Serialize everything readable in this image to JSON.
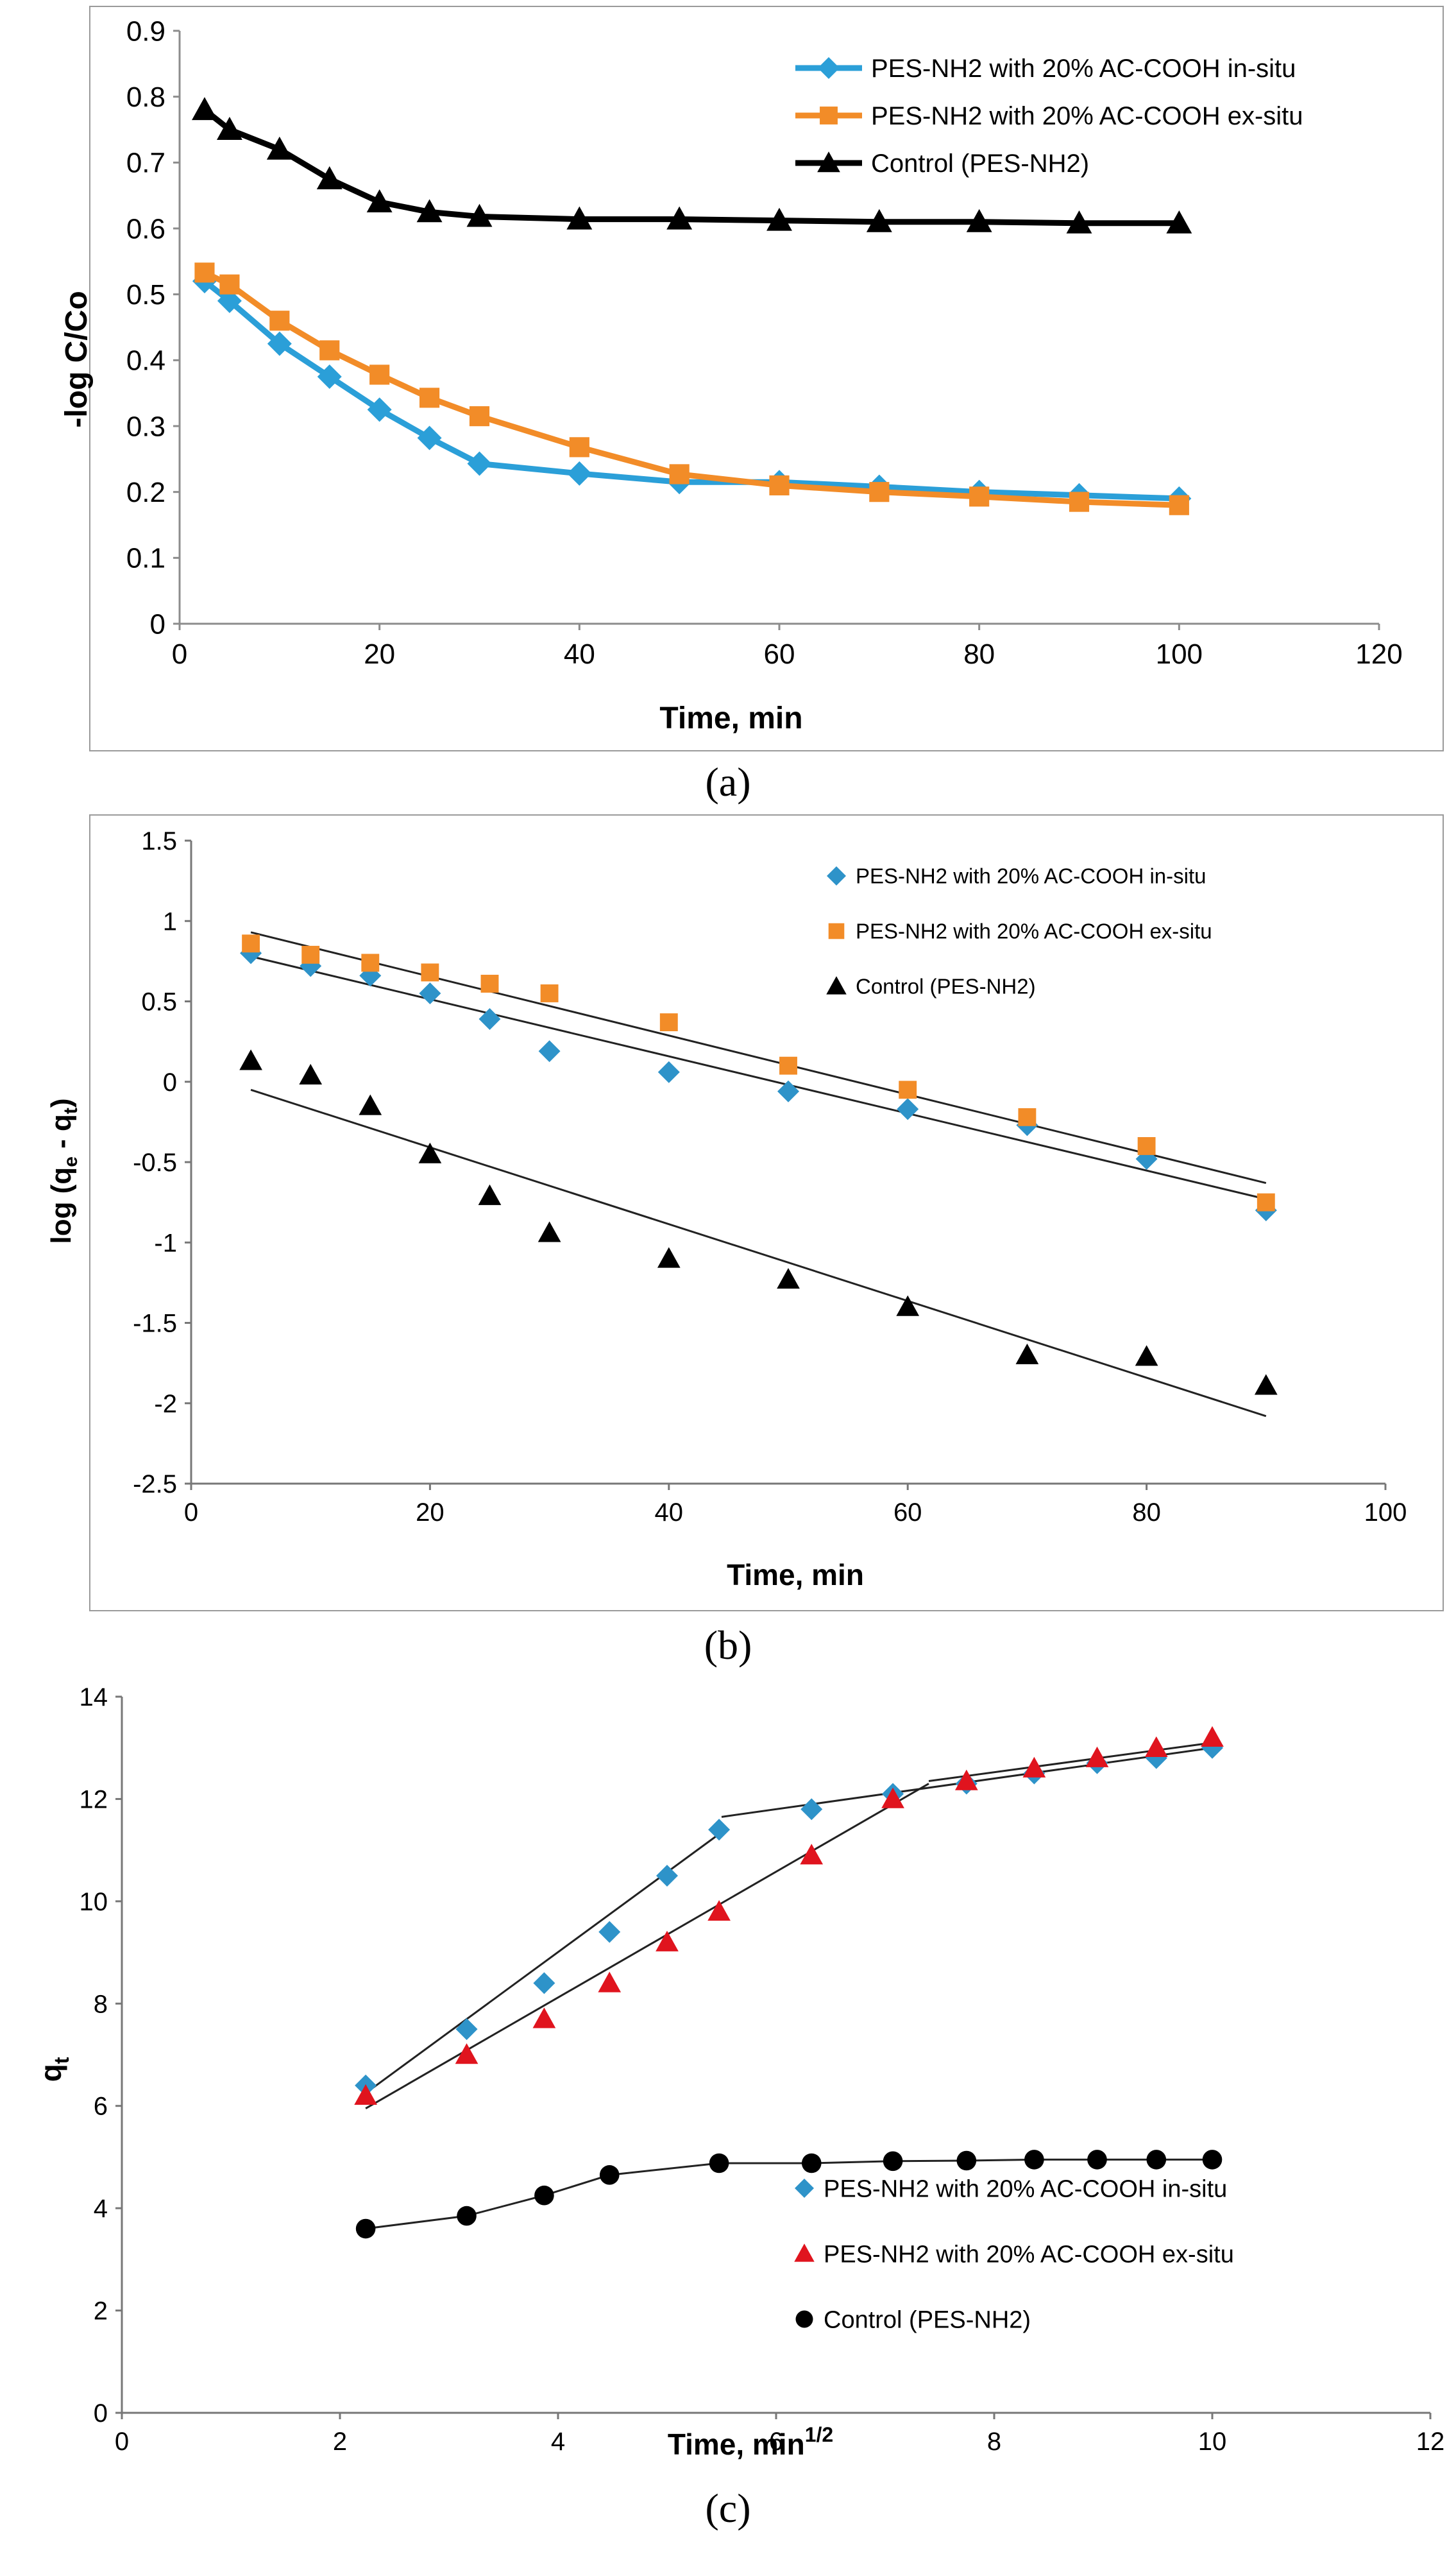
{
  "colors": {
    "in_situ": "#2B9FD8",
    "in_situ_marker": "#2E93C9",
    "ex_situ": "#F28C28",
    "ex_situ_c": "#E0141E",
    "control": "#000000",
    "axis": "#8C8C8C",
    "fit_line": "#222222"
  },
  "chart_data": [
    {
      "id": "a",
      "type": "line",
      "panel_label": "(a)",
      "title": "",
      "xlabel": "Time, min",
      "ylabel": "-log C/Co",
      "xlim": [
        0,
        120
      ],
      "ylim": [
        0,
        0.9
      ],
      "xticks": [
        0,
        20,
        40,
        60,
        80,
        100,
        120
      ],
      "yticks": [
        0,
        0.1,
        0.2,
        0.3,
        0.4,
        0.5,
        0.6,
        0.7,
        0.8,
        0.9
      ],
      "grid": false,
      "legend": "top-right",
      "series": [
        {
          "name": "PES-NH2 with 20% AC-COOH in-situ",
          "color_key": "in_situ",
          "marker": "diamond",
          "line": true,
          "x": [
            2.5,
            5,
            10,
            15,
            20,
            25,
            30,
            40,
            50,
            60,
            70,
            80,
            90,
            100
          ],
          "y": [
            0.52,
            0.49,
            0.425,
            0.375,
            0.325,
            0.282,
            0.243,
            0.228,
            0.215,
            0.215,
            0.208,
            0.2,
            0.195,
            0.19
          ]
        },
        {
          "name": "PES-NH2 with 20% AC-COOH ex-situ",
          "color_key": "ex_situ",
          "marker": "square",
          "line": true,
          "x": [
            2.5,
            5,
            10,
            15,
            20,
            25,
            30,
            40,
            50,
            60,
            70,
            80,
            90,
            100
          ],
          "y": [
            0.533,
            0.515,
            0.46,
            0.415,
            0.378,
            0.343,
            0.315,
            0.268,
            0.227,
            0.21,
            0.2,
            0.193,
            0.185,
            0.18
          ]
        },
        {
          "name": "Control (PES-NH2)",
          "color_key": "control",
          "marker": "triangle",
          "line": true,
          "x": [
            2.5,
            5,
            10,
            15,
            20,
            25,
            30,
            40,
            50,
            60,
            70,
            80,
            90,
            100
          ],
          "y": [
            0.78,
            0.75,
            0.72,
            0.675,
            0.64,
            0.625,
            0.618,
            0.614,
            0.614,
            0.612,
            0.61,
            0.61,
            0.608,
            0.608
          ]
        }
      ]
    },
    {
      "id": "b",
      "type": "scatter",
      "panel_label": "(b)",
      "title": "",
      "xlabel": "Time, min",
      "ylabel": "log (q",
      "ylabel_sub1": "e",
      "ylabel_mid": " - q",
      "ylabel_sub2": "t",
      "ylabel_end": ")",
      "xlim": [
        0,
        100
      ],
      "ylim": [
        -2.5,
        1.5
      ],
      "xticks": [
        0,
        20,
        40,
        60,
        80,
        100
      ],
      "yticks": [
        -2.5,
        -2,
        -1.5,
        -1,
        -0.5,
        0,
        0.5,
        1,
        1.5
      ],
      "grid": false,
      "legend": "top-right",
      "series": [
        {
          "name": "PES-NH2 with 20% AC-COOH in-situ",
          "color_key": "in_situ_marker",
          "marker": "diamond",
          "x": [
            5,
            10,
            15,
            20,
            25,
            30,
            40,
            50,
            60,
            70,
            80,
            90
          ],
          "y": [
            0.8,
            0.72,
            0.66,
            0.55,
            0.39,
            0.19,
            0.06,
            -0.06,
            -0.17,
            -0.27,
            -0.48,
            -0.8
          ],
          "fit": [
            [
              5,
              0.78
            ],
            [
              90,
              -0.73
            ]
          ]
        },
        {
          "name": "PES-NH2 with 20% AC-COOH ex-situ",
          "color_key": "ex_situ",
          "marker": "square",
          "x": [
            5,
            10,
            15,
            20,
            25,
            30,
            40,
            50,
            60,
            70,
            80,
            90
          ],
          "y": [
            0.86,
            0.79,
            0.74,
            0.68,
            0.61,
            0.55,
            0.37,
            0.1,
            -0.05,
            -0.22,
            -0.4,
            -0.75
          ],
          "fit": [
            [
              5,
              0.93
            ],
            [
              90,
              -0.63
            ]
          ]
        },
        {
          "name": "Control (PES-NH2)",
          "color_key": "control",
          "marker": "triangle",
          "x": [
            5,
            10,
            15,
            20,
            25,
            30,
            40,
            50,
            60,
            70,
            80,
            90
          ],
          "y": [
            0.13,
            0.04,
            -0.15,
            -0.45,
            -0.71,
            -0.94,
            -1.1,
            -1.23,
            -1.4,
            -1.7,
            -1.71,
            -1.89
          ],
          "fit": [
            [
              5,
              -0.05
            ],
            [
              90,
              -2.08
            ]
          ]
        }
      ]
    },
    {
      "id": "c",
      "type": "scatter",
      "panel_label": "(c)",
      "title": "",
      "xlabel": "Time, min",
      "xlabel_sup": "1/2",
      "ylabel": "q",
      "ylabel_sub": "t",
      "xlim": [
        0,
        12
      ],
      "ylim": [
        0,
        14
      ],
      "xticks": [
        0,
        2,
        4,
        6,
        8,
        10,
        12
      ],
      "yticks": [
        0,
        2,
        4,
        6,
        8,
        10,
        12,
        14
      ],
      "grid": false,
      "legend": "bottom-right",
      "series": [
        {
          "name": "PES-NH2 with 20% AC-COOH  in-situ",
          "color_key": "in_situ_marker",
          "marker": "diamond",
          "x": [
            2.236,
            3.162,
            3.873,
            4.472,
            5.0,
            5.477,
            6.325,
            7.071,
            7.746,
            8.367,
            8.944,
            9.487,
            10.0
          ],
          "y": [
            6.4,
            7.5,
            8.4,
            9.4,
            10.5,
            11.4,
            11.8,
            12.1,
            12.3,
            12.5,
            12.7,
            12.8,
            13.0
          ],
          "fit_segments": [
            [
              [
                2.236,
                6.25
              ],
              [
                5.5,
                11.35
              ]
            ],
            [
              [
                5.5,
                11.65
              ],
              [
                10.0,
                13.0
              ]
            ]
          ]
        },
        {
          "name": "PES-NH2 with 20% AC-COOH ex-situ",
          "color_key": "ex_situ_c",
          "marker": "triangle",
          "x": [
            2.236,
            3.162,
            3.873,
            4.472,
            5.0,
            5.477,
            6.325,
            7.071,
            7.746,
            8.367,
            8.944,
            9.487,
            10.0
          ],
          "y": [
            6.2,
            7.0,
            7.7,
            8.4,
            9.2,
            9.8,
            10.9,
            12.0,
            12.35,
            12.6,
            12.8,
            13.0,
            13.2
          ],
          "fit_segments": [
            [
              [
                2.236,
                5.95
              ],
              [
                7.4,
                12.3
              ]
            ],
            [
              [
                7.4,
                12.35
              ],
              [
                10.0,
                13.1
              ]
            ]
          ]
        },
        {
          "name": "Control (PES-NH2)",
          "color_key": "control",
          "marker": "circle",
          "line": true,
          "x": [
            2.236,
            3.162,
            3.873,
            4.472,
            5.477,
            6.325,
            7.071,
            7.746,
            8.367,
            8.944,
            9.487,
            10.0
          ],
          "y": [
            3.6,
            3.85,
            4.25,
            4.65,
            4.88,
            4.88,
            4.92,
            4.93,
            4.95,
            4.95,
            4.95,
            4.95
          ]
        }
      ]
    }
  ]
}
